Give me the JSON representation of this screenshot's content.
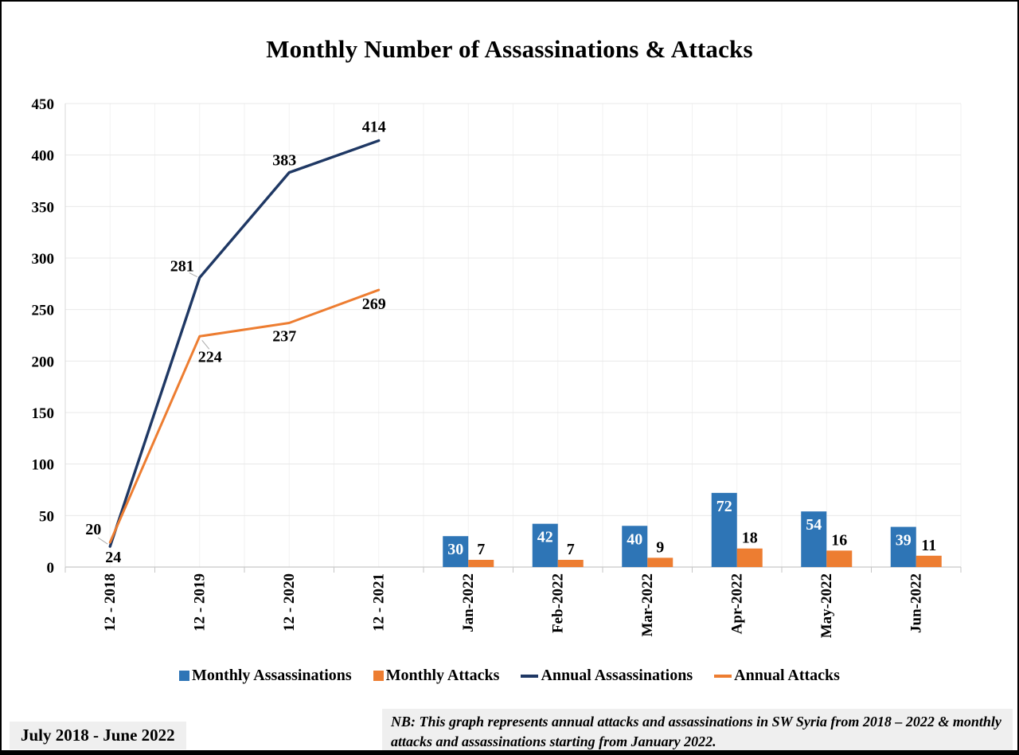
{
  "chart_data": {
    "type": "combo-bar-line",
    "title": "Monthly Number of Assassinations & Attacks",
    "categories": [
      "12 - 2018",
      "12 - 2019",
      "12 - 2020",
      "12 - 2021",
      "Jan-2022",
      "Feb-2022",
      "Mar-2022",
      "Apr-2022",
      "May-2022",
      "Jun-2022"
    ],
    "ylim": [
      0,
      450
    ],
    "ytick_step": 50,
    "yticks": [
      0,
      50,
      100,
      150,
      200,
      250,
      300,
      350,
      400,
      450
    ],
    "grid": true,
    "legend_position": "bottom",
    "series": [
      {
        "name": "Monthly Assassinations",
        "type": "bar",
        "color": "#2E75B6",
        "data_label_color": "#FFFFFF",
        "data_label_position": "inside-top",
        "values": [
          null,
          null,
          null,
          null,
          30,
          42,
          40,
          72,
          54,
          39
        ]
      },
      {
        "name": "Monthly Attacks",
        "type": "bar",
        "color": "#ED7D31",
        "data_label_color": "#000000",
        "data_label_position": "above",
        "values": [
          null,
          null,
          null,
          null,
          7,
          7,
          9,
          18,
          16,
          11
        ]
      },
      {
        "name": "Annual Assassinations",
        "type": "line",
        "color": "#1F3864",
        "data_label_color": "#000000",
        "data_label_position": "above",
        "values": [
          20,
          281,
          383,
          414,
          null,
          null,
          null,
          null,
          null,
          null
        ]
      },
      {
        "name": "Annual Attacks",
        "type": "line",
        "color": "#ED7D31",
        "data_label_color": "#000000",
        "data_label_position": "below",
        "values": [
          24,
          224,
          237,
          269,
          null,
          null,
          null,
          null,
          null,
          null
        ]
      }
    ]
  },
  "footer": {
    "period": "July 2018 - June 2022",
    "note": "NB: This graph represents annual attacks and assassinations in SW Syria from 2018 – 2022 & monthly attacks and assassinations starting from January 2022."
  }
}
